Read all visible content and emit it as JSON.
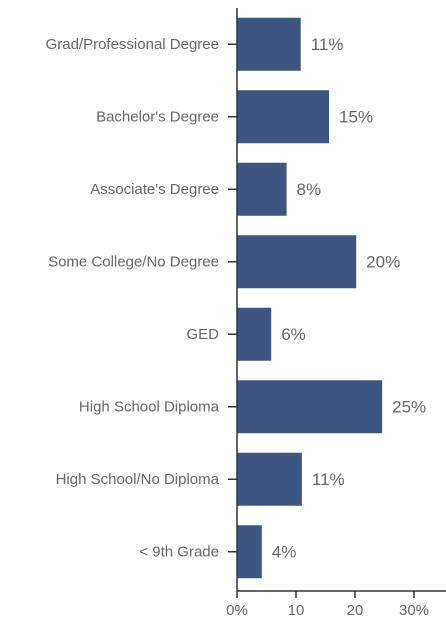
{
  "chart_data": {
    "type": "bar",
    "orientation": "horizontal",
    "categories": [
      "Grad/Professional Degree",
      "Bachelor's Degree",
      "Associate's Degree",
      "Some College/No Degree",
      "GED",
      "High School Diploma",
      "High School/No Diploma",
      "< 9th Grade"
    ],
    "values": [
      11,
      15,
      8,
      20,
      6,
      25,
      11,
      4
    ],
    "value_labels": [
      "11%",
      "15%",
      "8%",
      "20%",
      "6%",
      "25%",
      "11%",
      "4%"
    ],
    "bar_values": [
      10.8,
      15.6,
      8.4,
      20.2,
      5.8,
      24.6,
      11.0,
      4.2
    ],
    "xlim": [
      0,
      35
    ],
    "xticks": [
      0,
      10,
      20,
      30
    ],
    "xtick_labels": [
      "0%",
      "10",
      "20",
      "30%"
    ],
    "bar_color": "#3d5580",
    "grid": false,
    "title": "",
    "xlabel": "",
    "ylabel": ""
  }
}
